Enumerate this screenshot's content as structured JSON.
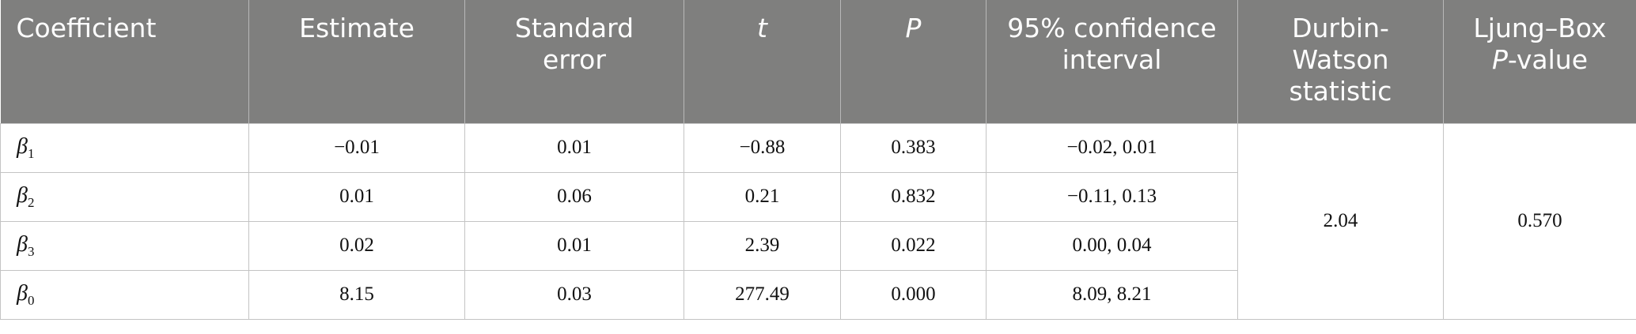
{
  "table": {
    "header": [
      [
        [
          "Coefficient"
        ]
      ],
      [
        [
          "Estimate"
        ]
      ],
      [
        [
          "Standard"
        ],
        [
          "error"
        ]
      ],
      [
        [
          {
            "text": "t",
            "italic": true
          }
        ]
      ],
      [
        [
          {
            "text": "P",
            "italic": true
          }
        ]
      ],
      [
        [
          "95% confidence"
        ],
        [
          "interval"
        ]
      ],
      [
        [
          "Durbin-"
        ],
        [
          "Watson"
        ],
        [
          "statistic"
        ]
      ],
      [
        [
          "Ljung–Box"
        ],
        [
          {
            "text": "P",
            "italic": true
          },
          "-value"
        ]
      ]
    ],
    "rows": [
      [
        {
          "symbol": "β",
          "subscript": "1"
        },
        "−0.01",
        "0.01",
        "−0.88",
        "0.383",
        "−0.02, 0.01"
      ],
      [
        {
          "symbol": "β",
          "subscript": "2"
        },
        "0.01",
        "0.06",
        "0.21",
        "0.832",
        "−0.11, 0.13"
      ],
      [
        {
          "symbol": "β",
          "subscript": "3"
        },
        "0.02",
        "0.01",
        "2.39",
        "0.022",
        "0.00, 0.04"
      ],
      [
        {
          "symbol": "β",
          "subscript": "0"
        },
        "8.15",
        "0.03",
        "277.49",
        "0.000",
        "8.09, 8.21"
      ]
    ],
    "durbin_watson": "2.04",
    "ljung_box_p": "0.570"
  }
}
